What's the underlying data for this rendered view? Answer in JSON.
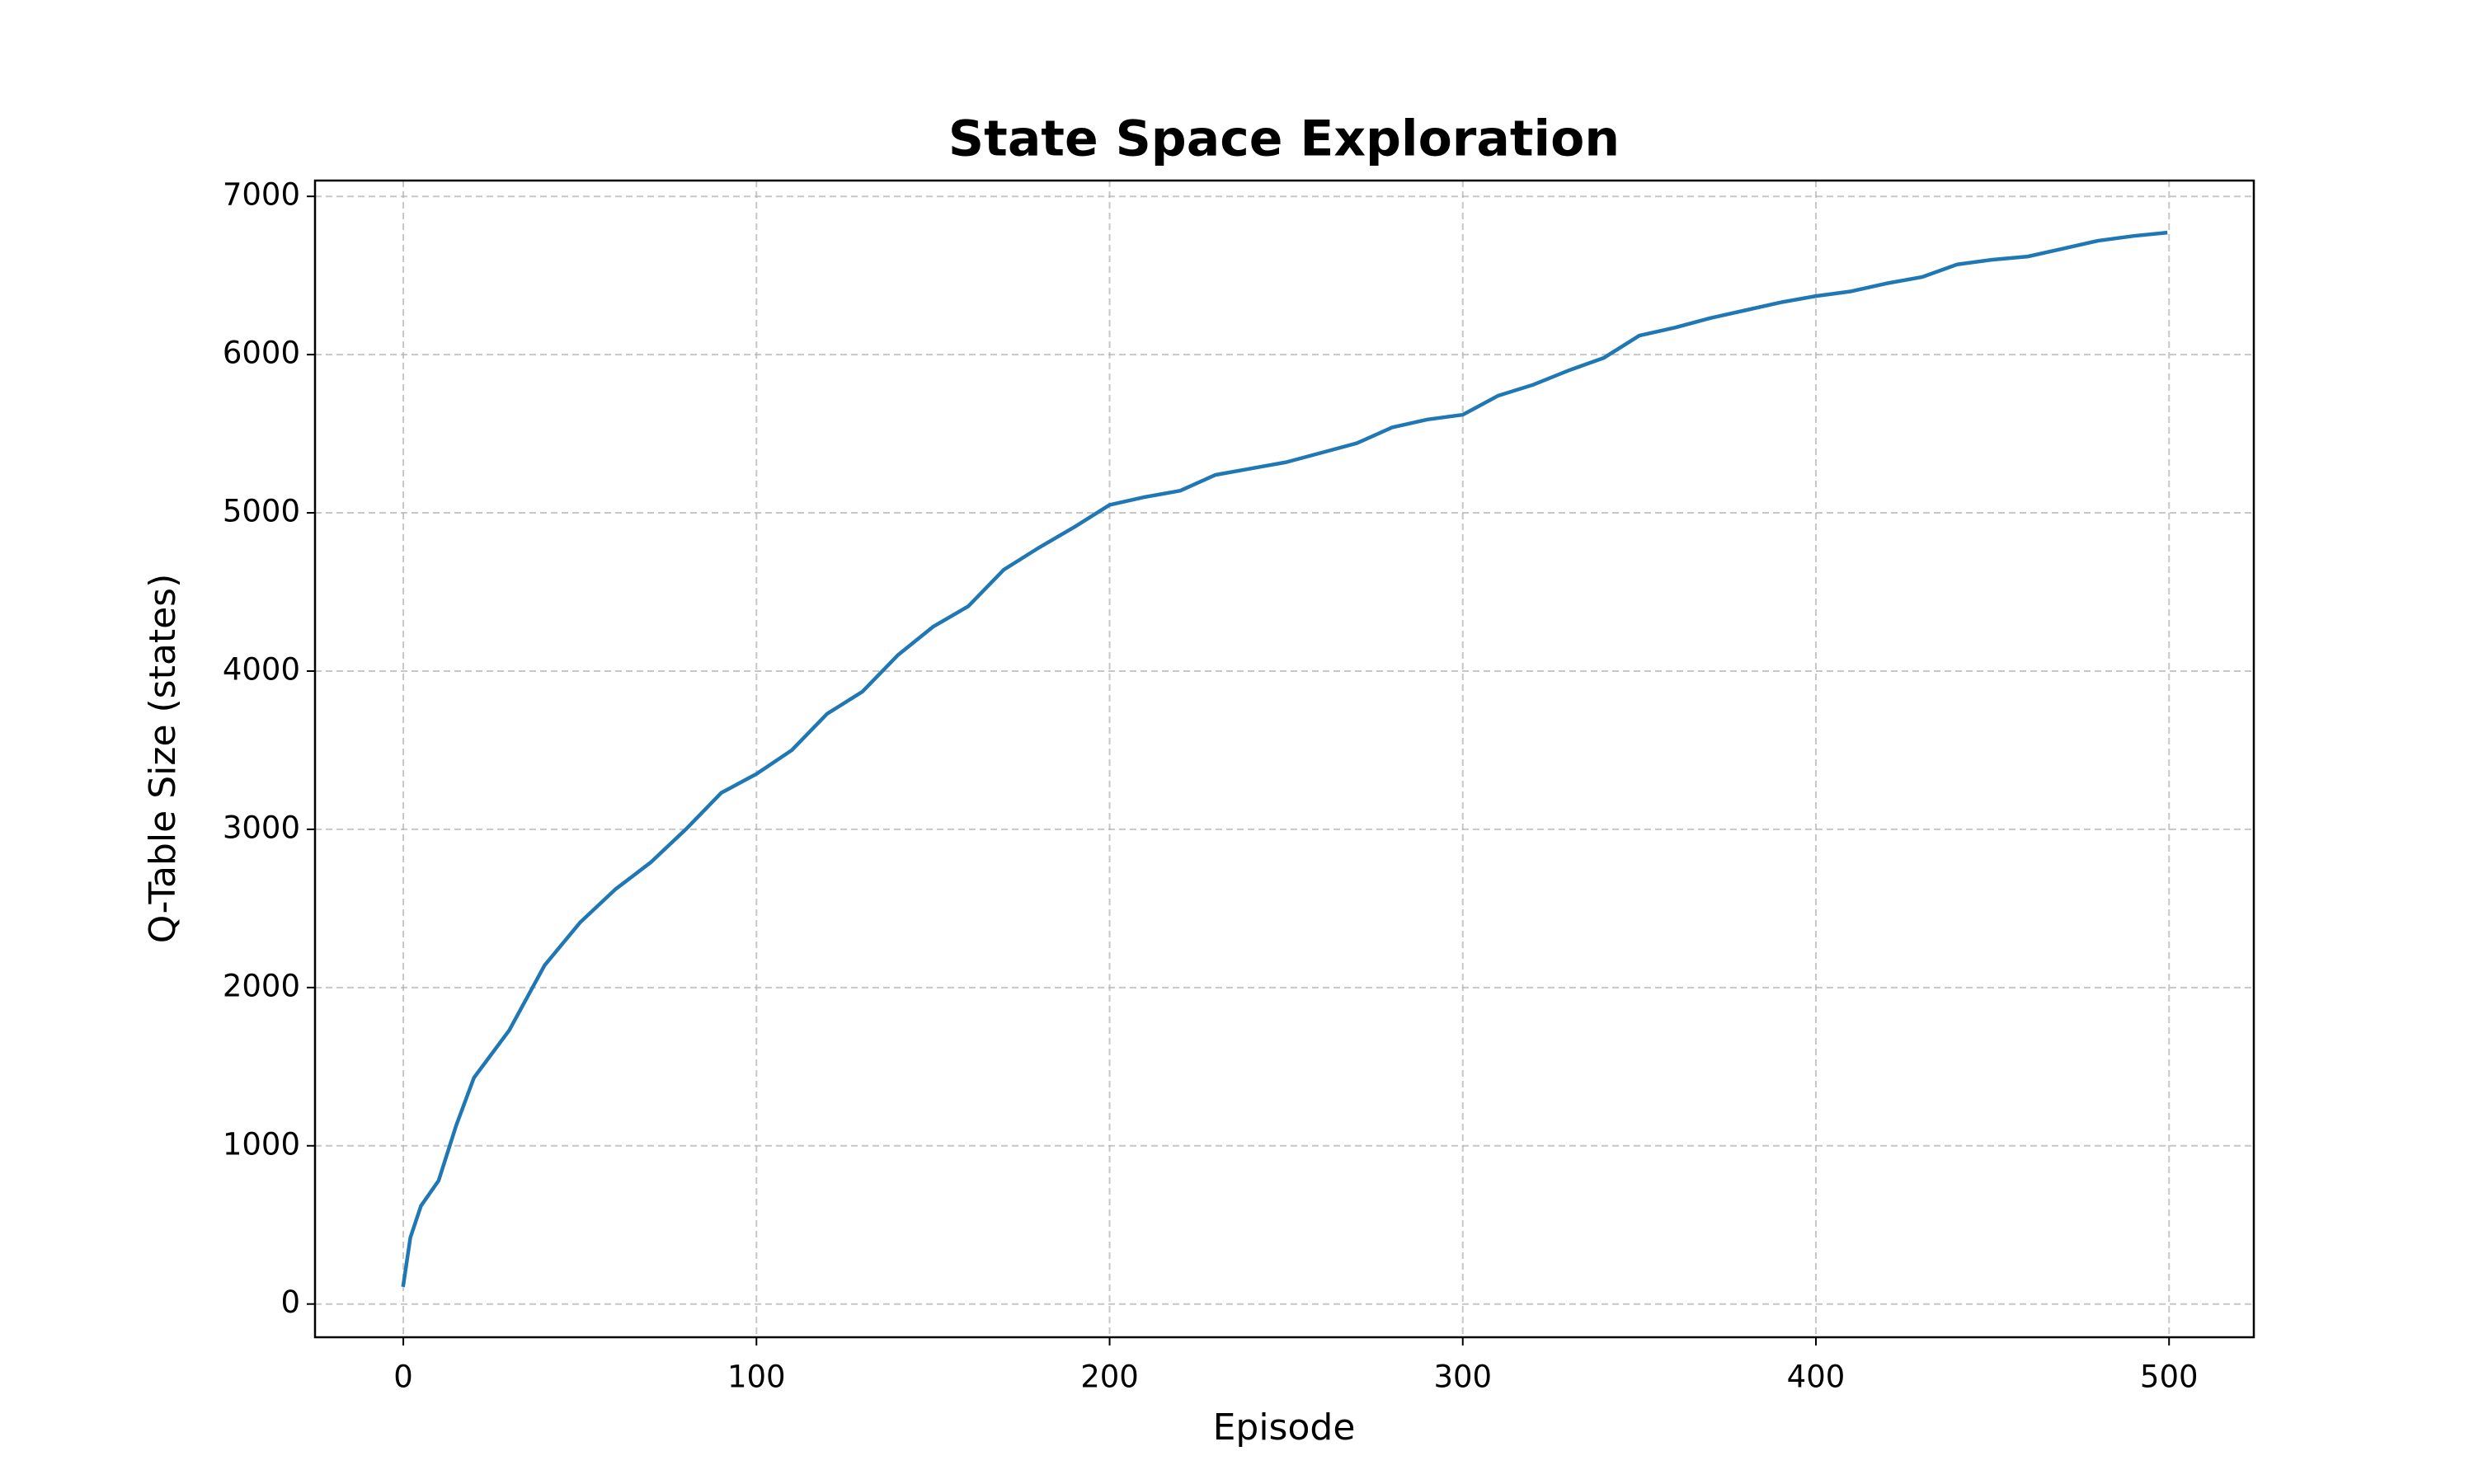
{
  "chart_data": {
    "type": "line",
    "title": "State Space Exploration",
    "x_label": "Episode",
    "y_label": "Q-Table Size (states)",
    "x": [
      0,
      2,
      5,
      10,
      15,
      20,
      30,
      40,
      50,
      60,
      70,
      80,
      90,
      100,
      110,
      120,
      130,
      140,
      150,
      160,
      170,
      180,
      190,
      200,
      210,
      220,
      230,
      240,
      250,
      260,
      270,
      280,
      290,
      300,
      310,
      320,
      330,
      340,
      350,
      360,
      370,
      380,
      390,
      400,
      410,
      420,
      430,
      440,
      450,
      460,
      470,
      480,
      490,
      499
    ],
    "series": [
      {
        "name": "Q-Table Size",
        "color": "#1f77b4",
        "values": [
          120,
          420,
          620,
          780,
          1130,
          1430,
          1730,
          2140,
          2410,
          2620,
          2790,
          3000,
          3230,
          3350,
          3500,
          3730,
          3870,
          4100,
          4280,
          4410,
          4640,
          4780,
          4910,
          5050,
          5100,
          5140,
          5240,
          5280,
          5320,
          5380,
          5440,
          5540,
          5590,
          5620,
          5740,
          5810,
          5900,
          5980,
          6120,
          6170,
          6230,
          6280,
          6330,
          6370,
          6400,
          6450,
          6490,
          6570,
          6600,
          6620,
          6670,
          6720,
          6750,
          6770
        ]
      }
    ],
    "xlim": [
      -25,
      524
    ],
    "ylim": [
      -210,
      7100
    ],
    "xticks": [
      0,
      100,
      200,
      300,
      400,
      500
    ],
    "yticks": [
      0,
      1000,
      2000,
      3000,
      4000,
      5000,
      6000,
      7000
    ],
    "grid": true
  }
}
